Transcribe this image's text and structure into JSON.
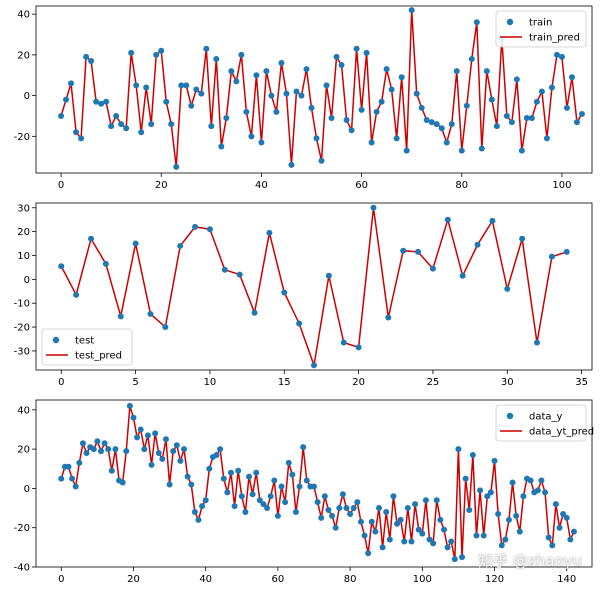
{
  "chart_data": [
    {
      "type": "scatter",
      "legend_position": "top-right",
      "xlim": [
        -5,
        106
      ],
      "ylim": [
        -38,
        44
      ],
      "xticks": [
        0,
        20,
        40,
        60,
        80,
        100
      ],
      "yticks": [
        -20,
        0,
        20,
        40
      ],
      "series": [
        {
          "name": "train",
          "kind": "points"
        },
        {
          "name": "train_pred",
          "kind": "line"
        }
      ],
      "values": [
        -10,
        -2,
        6,
        -18,
        -21,
        19,
        17,
        -3,
        -4,
        -3,
        -15,
        -10,
        -14,
        -16,
        21,
        5,
        -18,
        4,
        -14,
        20,
        22,
        -3,
        -14,
        -35,
        5,
        5,
        -5,
        3,
        1,
        23,
        -15,
        18,
        -25,
        -11,
        12,
        7,
        20,
        -8,
        -20,
        10,
        -23,
        12,
        0,
        -8,
        16,
        1,
        -34,
        2,
        0,
        13,
        -6,
        -21,
        -32,
        5,
        -11,
        19,
        15,
        -12,
        -17,
        23,
        -7,
        21,
        -23,
        -8,
        -3,
        13,
        3,
        -21,
        9,
        -27,
        42,
        1,
        -6,
        -12,
        -13,
        -14,
        -16,
        -23,
        -14,
        12,
        -27,
        -5,
        18,
        36,
        -26,
        12,
        -2,
        -15,
        28,
        -10,
        -13,
        8,
        -27,
        -11,
        -11,
        -3,
        2,
        -21,
        4,
        20,
        19,
        -6,
        9,
        -13,
        -9
      ]
    },
    {
      "type": "scatter",
      "legend_position": "bottom-left",
      "xlim": [
        -1.7,
        35.7
      ],
      "ylim": [
        -38,
        32
      ],
      "xticks": [
        0,
        5,
        10,
        15,
        20,
        25,
        30,
        35
      ],
      "yticks": [
        -30,
        -20,
        -10,
        0,
        10,
        20,
        30
      ],
      "series": [
        {
          "name": "test",
          "kind": "points"
        },
        {
          "name": "test_pred",
          "kind": "line"
        }
      ],
      "values": [
        5.5,
        -6.5,
        17,
        6.5,
        -15.5,
        15,
        -14.5,
        -20,
        14,
        22,
        21,
        4,
        2,
        -14,
        19.5,
        -5.5,
        -18.5,
        -36,
        1.5,
        -26.5,
        -28.5,
        30,
        -16,
        12,
        11.5,
        4.5,
        25,
        1.5,
        14.5,
        24.5,
        -4,
        17,
        -26.5,
        9.5,
        11.5
      ]
    },
    {
      "type": "scatter",
      "legend_position": "top-right",
      "xlim": [
        -7,
        147
      ],
      "ylim": [
        -40,
        45
      ],
      "xticks": [
        0,
        20,
        40,
        60,
        80,
        100,
        120,
        140
      ],
      "yticks": [
        -40,
        -20,
        0,
        20,
        40
      ],
      "series": [
        {
          "name": "data_y",
          "kind": "points"
        },
        {
          "name": "data_yt_pred",
          "kind": "line"
        }
      ],
      "values": [
        5,
        11,
        11,
        5,
        1,
        13,
        23,
        18,
        21,
        20,
        24,
        19,
        23,
        20,
        9,
        20,
        4,
        3,
        19,
        42,
        36,
        26,
        30,
        20,
        27,
        12,
        28,
        18,
        15,
        25,
        2,
        19,
        22,
        14,
        20,
        6,
        2,
        -12,
        -16,
        -9,
        -6,
        10,
        16,
        17,
        20,
        5,
        -2,
        8,
        -9,
        9,
        -4,
        -12,
        6,
        -3,
        8,
        -6,
        -8,
        -10,
        -4,
        4,
        -14,
        1,
        -7,
        13,
        7,
        -12,
        1,
        21,
        4,
        1,
        1,
        -7,
        -15,
        -4,
        -11,
        -14,
        -20,
        -10,
        -3,
        -10,
        -13,
        -10,
        -7,
        -17,
        -24,
        -33,
        -17,
        -22,
        -10,
        -30,
        -12,
        -26,
        -4,
        -18,
        -16,
        -27,
        -10,
        -27,
        -8,
        -21,
        -23,
        -6,
        -26,
        -28,
        -6,
        -16,
        -21,
        -30,
        -27,
        -36,
        20,
        -35,
        5,
        -11,
        17,
        -24,
        -1,
        -24,
        -4,
        -2,
        14,
        -13,
        -29,
        -26,
        -16,
        3,
        -14,
        -22,
        -4,
        5,
        4,
        -2,
        -1,
        4,
        -2,
        -25,
        -29,
        -8,
        -20,
        -13,
        -15,
        -26,
        -22
      ]
    }
  ],
  "watermark": "知乎 @zhaoyu",
  "colors": {
    "points": "#1f77b4",
    "line": "#cc0000",
    "axis": "#000000"
  }
}
